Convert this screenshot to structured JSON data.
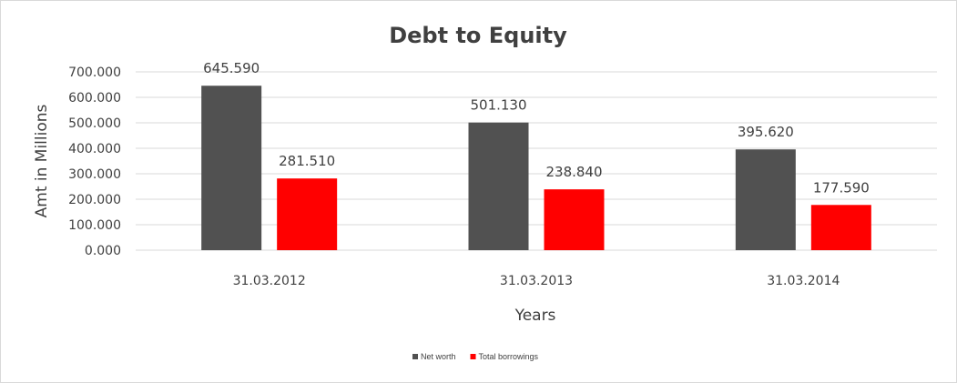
{
  "chart_data": {
    "type": "bar",
    "title": "Debt to Equity",
    "xlabel": "Years",
    "ylabel": "Amt in Millions",
    "categories": [
      "31.03.2012",
      "31.03.2013",
      "31.03.2014"
    ],
    "series": [
      {
        "name": "Net worth",
        "color": "#515151",
        "values": [
          645.59,
          501.13,
          395.62
        ],
        "labels": [
          "645.590",
          "501.130",
          "395.620"
        ]
      },
      {
        "name": "Total borrowings",
        "color": "#ff0000",
        "values": [
          281.51,
          238.84,
          177.59
        ],
        "labels": [
          "281.510",
          "238.840",
          "177.590"
        ]
      }
    ],
    "ylim": [
      0,
      700
    ],
    "yticks": [
      0,
      100,
      200,
      300,
      400,
      500,
      600,
      700
    ],
    "ytick_labels": [
      "0.000",
      "100.000",
      "200.000",
      "300.000",
      "400.000",
      "500.000",
      "600.000",
      "700.000"
    ],
    "grid": true,
    "legend": "bottom"
  }
}
